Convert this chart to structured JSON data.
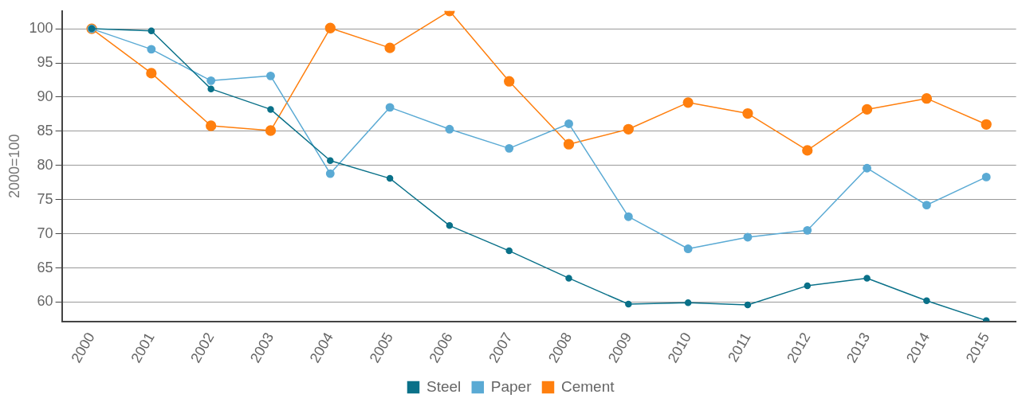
{
  "chart_data": {
    "type": "line",
    "ylabel": "2000=100",
    "categories": [
      "2000",
      "2001",
      "2002",
      "2003",
      "2004",
      "2005",
      "2006",
      "2007",
      "2008",
      "2009",
      "2010",
      "2011",
      "2012",
      "2013",
      "2014",
      "2015"
    ],
    "series": [
      {
        "name": "Steel",
        "color": "#0a7189",
        "values": [
          100,
          99.7,
          91.2,
          88.2,
          80.7,
          78.1,
          71.2,
          67.5,
          63.5,
          59.7,
          59.9,
          59.6,
          62.4,
          63.5,
          60.2,
          57.3
        ]
      },
      {
        "name": "Paper",
        "color": "#5aaad4",
        "values": [
          100,
          97.0,
          92.4,
          93.1,
          78.8,
          88.5,
          85.3,
          82.5,
          86.1,
          72.5,
          67.8,
          69.5,
          70.5,
          79.6,
          74.2,
          78.3
        ]
      },
      {
        "name": "Cement",
        "color": "#ff7f0e",
        "values": [
          100,
          93.5,
          85.8,
          85.1,
          100.1,
          97.2,
          102.6,
          92.3,
          83.1,
          85.3,
          89.2,
          87.6,
          82.2,
          88.2,
          89.8,
          86.0
        ]
      }
    ],
    "ylim": [
      57.2,
      102.6
    ],
    "yticks": [
      60,
      65,
      70,
      75,
      80,
      85,
      90,
      95,
      100
    ],
    "grid": "y",
    "legend": "bottom",
    "marker": "circle",
    "line_style": "solid"
  }
}
